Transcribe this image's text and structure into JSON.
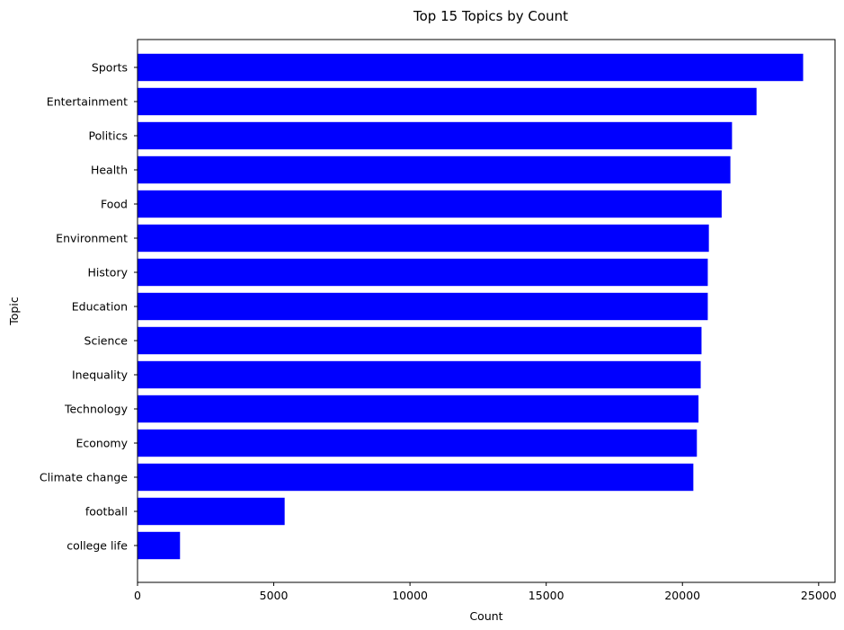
{
  "chart_data": {
    "type": "bar",
    "orientation": "horizontal",
    "title": "Top 15 Topics by Count",
    "xlabel": "Count",
    "ylabel": "Topic",
    "categories": [
      "Sports",
      "Entertainment",
      "Politics",
      "Health",
      "Food",
      "Environment",
      "History",
      "Education",
      "Science",
      "Inequality",
      "Technology",
      "Economy",
      "Climate change",
      "football",
      "college life"
    ],
    "values": [
      24430,
      22720,
      21820,
      21760,
      21440,
      20970,
      20930,
      20930,
      20700,
      20670,
      20590,
      20530,
      20400,
      5400,
      1560
    ],
    "xlim": [
      0,
      25600
    ],
    "xticks": [
      0,
      5000,
      10000,
      15000,
      20000,
      25000
    ],
    "bar_color": "#0000ff",
    "grid": false,
    "legend": "none"
  }
}
